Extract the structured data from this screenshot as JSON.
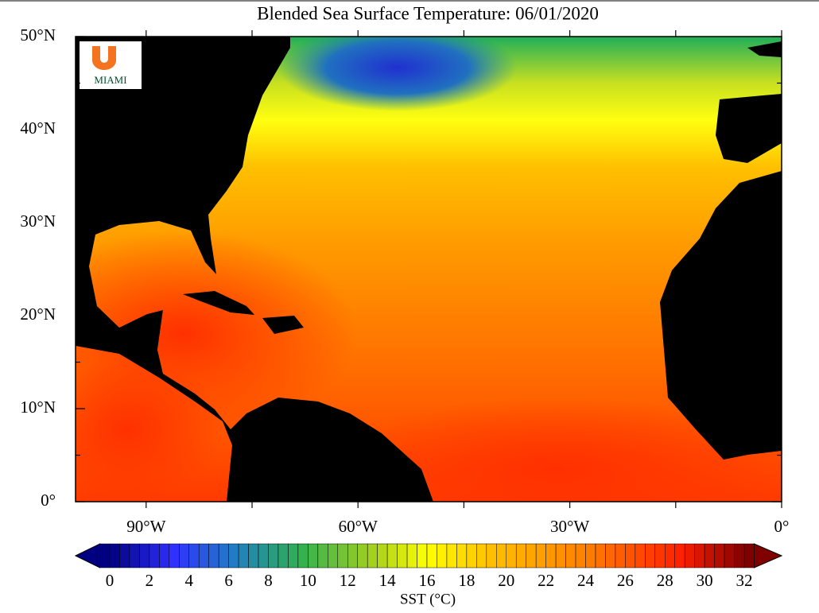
{
  "title": "Blended Sea Surface Temperature: 06/01/2020",
  "logo": {
    "text": "MIAMI"
  },
  "map": {
    "xlim": [
      -100,
      0
    ],
    "ylim": [
      0,
      50
    ],
    "xticks": [
      {
        "value": -90,
        "label": "90°W"
      },
      {
        "value": -60,
        "label": "60°W"
      },
      {
        "value": -30,
        "label": "30°W"
      },
      {
        "value": 0,
        "label": "0°"
      }
    ],
    "yticks": [
      {
        "value": 0,
        "label": "0°"
      },
      {
        "value": 10,
        "label": "10°N"
      },
      {
        "value": 20,
        "label": "20°N"
      },
      {
        "value": 30,
        "label": "30°N"
      },
      {
        "value": 40,
        "label": "40°N"
      },
      {
        "value": 50,
        "label": "50°N"
      }
    ]
  },
  "colorbar": {
    "lim": [
      0,
      32
    ],
    "ticks": [
      0,
      2,
      4,
      6,
      8,
      10,
      12,
      14,
      16,
      18,
      20,
      22,
      24,
      26,
      28,
      30,
      32
    ],
    "label": "SST (°C)"
  }
}
